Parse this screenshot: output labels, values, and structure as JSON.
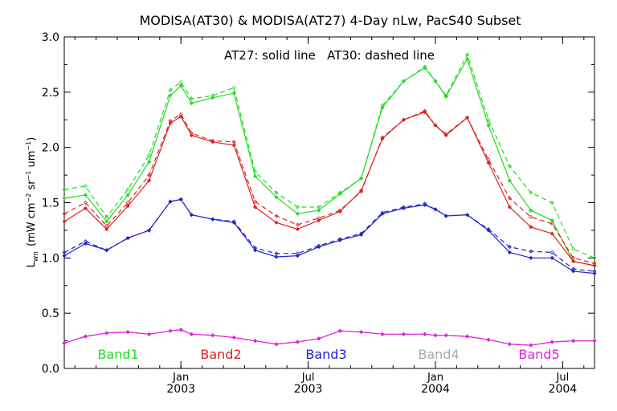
{
  "chart_data": {
    "type": "line",
    "title": "MODISA(AT30) & MODISA(AT27) 4-Day nLw, PacS40 Subset",
    "annotation": "AT27: solid line   AT30: dashed line",
    "ylabel_main": "L",
    "ylabel_sub": "wn",
    "ylabel_units_a": "(mW cm",
    "ylabel_units_exp1": "−2",
    "ylabel_units_b": " sr",
    "ylabel_units_exp2": "−1",
    "ylabel_units_c": " um",
    "ylabel_units_exp3": "−1",
    "ylabel_units_d": ")",
    "ylim": [
      0.0,
      3.0
    ],
    "yticks": [
      "0.0",
      "0.5",
      "1.0",
      "1.5",
      "2.0",
      "2.5",
      "3.0"
    ],
    "ytick_values": [
      0,
      0.5,
      1,
      1.5,
      2,
      2.5,
      3
    ],
    "xlim": [
      0,
      25
    ],
    "xticks": [
      {
        "month": "Jan",
        "year": "2003",
        "x": 5.5
      },
      {
        "month": "Jul",
        "year": "2003",
        "x": 11.5
      },
      {
        "month": "Jan",
        "year": "2004",
        "x": 17.5
      },
      {
        "month": "Jul",
        "year": "2004",
        "x": 23.5
      }
    ],
    "x": [
      0,
      1,
      2,
      3,
      4,
      5,
      5.5,
      6,
      7,
      8,
      9,
      10,
      11,
      12,
      13,
      14,
      15,
      16,
      17,
      17.5,
      18,
      19,
      20,
      21,
      22,
      23,
      24,
      25
    ],
    "series": [
      {
        "name": "Band1",
        "color": "#22dd22",
        "at27": [
          1.54,
          1.57,
          1.33,
          1.57,
          1.87,
          2.47,
          2.56,
          2.4,
          2.45,
          2.49,
          1.74,
          1.55,
          1.4,
          1.43,
          1.58,
          1.72,
          2.36,
          2.6,
          2.72,
          2.6,
          2.46,
          2.8,
          2.2,
          1.7,
          1.43,
          1.34,
          0.97,
          0.93
        ],
        "at30": [
          1.62,
          1.65,
          1.37,
          1.62,
          1.93,
          2.52,
          2.59,
          2.44,
          2.47,
          2.54,
          1.78,
          1.59,
          1.46,
          1.46,
          1.59,
          1.72,
          2.38,
          2.6,
          2.73,
          2.6,
          2.47,
          2.84,
          2.25,
          1.83,
          1.59,
          1.5,
          1.08,
          1.0
        ]
      },
      {
        "name": "Band2",
        "color": "#dd2222",
        "at27": [
          1.33,
          1.45,
          1.26,
          1.47,
          1.7,
          2.22,
          2.28,
          2.11,
          2.05,
          2.02,
          1.46,
          1.32,
          1.26,
          1.34,
          1.42,
          1.61,
          2.08,
          2.25,
          2.32,
          2.2,
          2.11,
          2.27,
          1.86,
          1.46,
          1.28,
          1.22,
          0.97,
          0.93
        ],
        "at30": [
          1.4,
          1.5,
          1.29,
          1.5,
          1.75,
          2.24,
          2.3,
          2.13,
          2.06,
          2.05,
          1.51,
          1.38,
          1.3,
          1.36,
          1.43,
          1.6,
          2.09,
          2.25,
          2.33,
          2.2,
          2.12,
          2.27,
          1.89,
          1.54,
          1.37,
          1.31,
          1.0,
          0.95
        ]
      },
      {
        "name": "Band3",
        "color": "#2222cc",
        "at27": [
          1.02,
          1.13,
          1.07,
          1.18,
          1.25,
          1.51,
          1.53,
          1.39,
          1.35,
          1.32,
          1.07,
          1.01,
          1.02,
          1.1,
          1.16,
          1.21,
          1.4,
          1.45,
          1.48,
          1.44,
          1.38,
          1.39,
          1.25,
          1.05,
          1.0,
          1.0,
          0.88,
          0.86
        ],
        "at30": [
          1.05,
          1.15,
          1.07,
          1.18,
          1.25,
          1.51,
          1.53,
          1.39,
          1.35,
          1.33,
          1.09,
          1.04,
          1.04,
          1.11,
          1.17,
          1.22,
          1.41,
          1.46,
          1.49,
          1.44,
          1.38,
          1.39,
          1.26,
          1.1,
          1.06,
          1.05,
          0.9,
          0.88
        ]
      },
      {
        "name": "Band4",
        "color": "#aaaaaa",
        "at27": [],
        "at30": []
      },
      {
        "name": "Band5",
        "color": "#dd22dd",
        "at27": [
          0.23,
          0.29,
          0.32,
          0.33,
          0.31,
          0.34,
          0.35,
          0.31,
          0.3,
          0.28,
          0.25,
          0.22,
          0.24,
          0.27,
          0.34,
          0.33,
          0.31,
          0.31,
          0.31,
          0.3,
          0.3,
          0.29,
          0.26,
          0.22,
          0.21,
          0.24,
          0.25,
          0.25
        ],
        "at30": [
          0.23,
          0.29,
          0.32,
          0.33,
          0.31,
          0.34,
          0.35,
          0.31,
          0.3,
          0.28,
          0.25,
          0.22,
          0.24,
          0.27,
          0.34,
          0.33,
          0.31,
          0.31,
          0.31,
          0.3,
          0.3,
          0.29,
          0.26,
          0.22,
          0.21,
          0.24,
          0.25,
          0.25
        ]
      }
    ],
    "legend_placement": "bottom, inside plot"
  }
}
